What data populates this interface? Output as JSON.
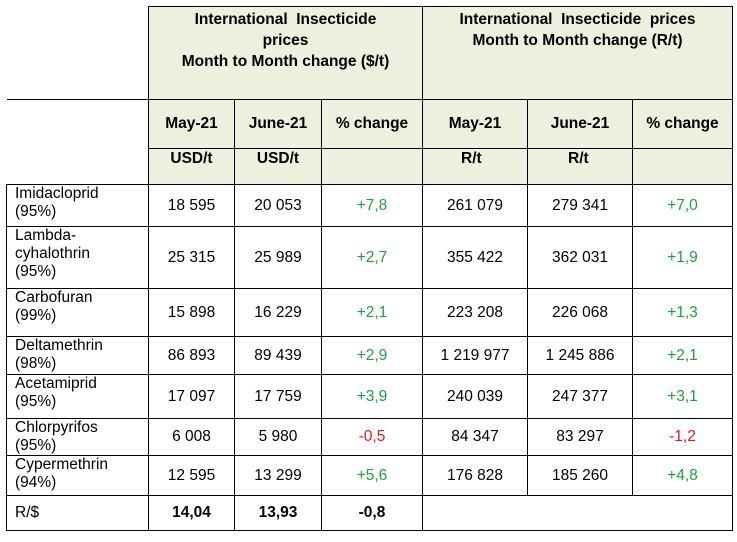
{
  "header": {
    "usd_title_line1": "International  Insecticide",
    "usd_title_line2": "prices",
    "usd_title_line3": "Month to Month change ($/t)",
    "zar_title_line1": "International  Insecticide  prices",
    "zar_title_line2": "Month to Month change (R/t)",
    "col_may": "May-21",
    "col_june": "June-21",
    "col_change": "% change",
    "unit_usd": "USD/t",
    "unit_zar": "R/t"
  },
  "rows": [
    {
      "name": [
        "Imidacloprid",
        "(95%)"
      ],
      "usd_may": "18 595",
      "usd_june": "20 053",
      "usd_change": "+7,8",
      "zar_may": "261 079",
      "zar_june": "279 341",
      "zar_change": "+7,0"
    },
    {
      "name": [
        "Lambda-",
        "cyhalothrin",
        "(95%)"
      ],
      "usd_may": "25 315",
      "usd_june": "25 989",
      "usd_change": "+2,7",
      "zar_may": "355 422",
      "zar_june": "362 031",
      "zar_change": "+1,9"
    },
    {
      "name": [
        "Carbofuran",
        "(99%)"
      ],
      "usd_may": "15 898",
      "usd_june": "16 229",
      "usd_change": "+2,1",
      "zar_may": "223 208",
      "zar_june": "226 068",
      "zar_change": "+1,3"
    },
    {
      "name": [
        "Deltamethrin",
        "(98%)"
      ],
      "usd_may": "86 893",
      "usd_june": "89 439",
      "usd_change": "+2,9",
      "zar_may": "1 219 977",
      "zar_june": "1 245 886",
      "zar_change": "+2,1"
    },
    {
      "name": [
        "Acetamiprid",
        "(95%)"
      ],
      "usd_may": "17 097",
      "usd_june": "17 759",
      "usd_change": "+3,9",
      "zar_may": "240 039",
      "zar_june": "247 377",
      "zar_change": "+3,1"
    },
    {
      "name": [
        "Chlorpyrifos",
        "(95%)"
      ],
      "usd_may": "6 008",
      "usd_june": "5 980",
      "usd_change": "-0,5",
      "zar_may": "84 347",
      "zar_june": "83 297",
      "zar_change": "-1,2"
    },
    {
      "name": [
        "Cypermethrin",
        "(94%)"
      ],
      "usd_may": "12 595",
      "usd_june": "13 299",
      "usd_change": "+5,6",
      "zar_may": "176 828",
      "zar_june": "185 260",
      "zar_change": "+4,8"
    }
  ],
  "exchange": {
    "label": "R/$",
    "may": "14,04",
    "june": "13,93",
    "change": "-0,8"
  },
  "colors": {
    "header_bg": "#ebf1de",
    "positive": "#1f9f3f",
    "negative": "#e0171d"
  }
}
